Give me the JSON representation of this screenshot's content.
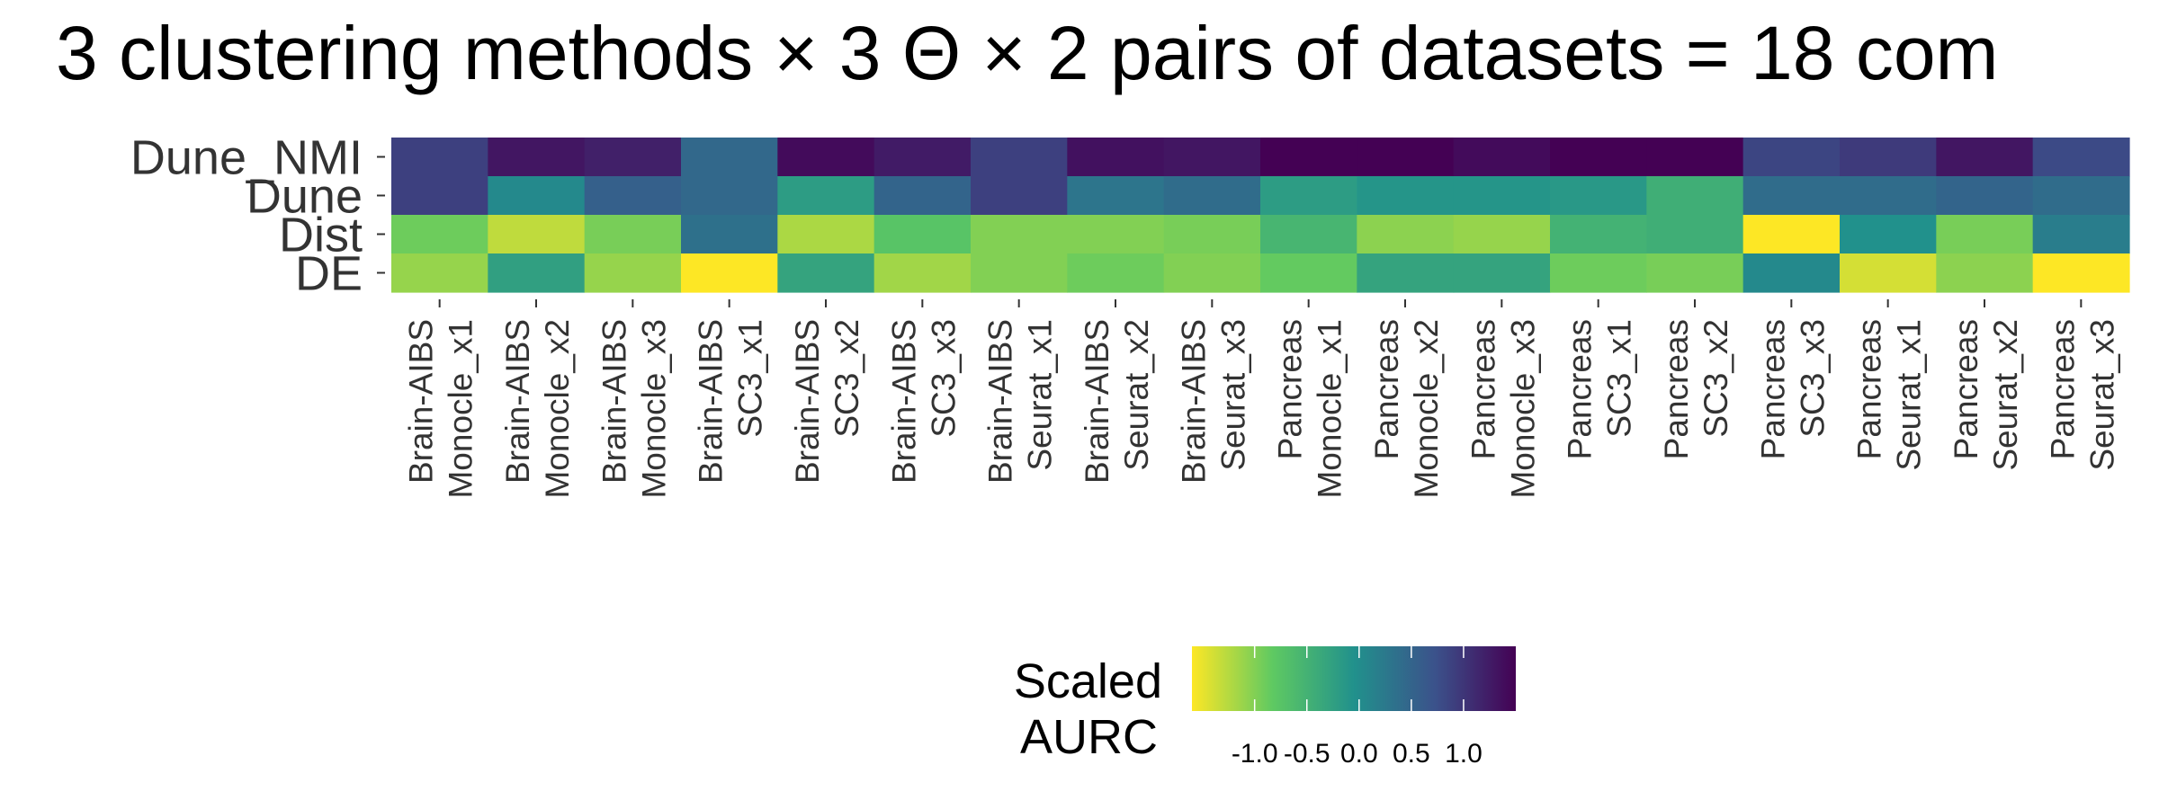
{
  "chart_data": {
    "type": "heatmap",
    "title": "3 clustering methods × 3 Θ  × 2 pairs of datasets = 18 com",
    "rows": [
      "Dune_NMI",
      "Dune",
      "Dist",
      "DE"
    ],
    "columns": [
      [
        "Brain-AIBS",
        "Monocle_x1"
      ],
      [
        "Brain-AIBS",
        "Monocle_x2"
      ],
      [
        "Brain-AIBS",
        "Monocle_x3"
      ],
      [
        "Brain-AIBS",
        "SC3_x1"
      ],
      [
        "Brain-AIBS",
        "SC3_x2"
      ],
      [
        "Brain-AIBS",
        "SC3_x3"
      ],
      [
        "Brain-AIBS",
        "Seurat_x1"
      ],
      [
        "Brain-AIBS",
        "Seurat_x2"
      ],
      [
        "Brain-AIBS",
        "Seurat_x3"
      ],
      [
        "Pancreas",
        "Monocle_x1"
      ],
      [
        "Pancreas",
        "Monocle_x2"
      ],
      [
        "Pancreas",
        "Monocle_x3"
      ],
      [
        "Pancreas",
        "SC3_x1"
      ],
      [
        "Pancreas",
        "SC3_x2"
      ],
      [
        "Pancreas",
        "SC3_x3"
      ],
      [
        "Pancreas",
        "Seurat_x1"
      ],
      [
        "Pancreas",
        "Seurat_x2"
      ],
      [
        "Pancreas",
        "Seurat_x3"
      ]
    ],
    "values": [
      [
        0.9,
        1.3,
        1.2,
        0.45,
        1.4,
        1.25,
        0.9,
        1.35,
        1.3,
        1.5,
        1.5,
        1.4,
        1.5,
        1.5,
        0.85,
        0.95,
        1.3,
        0.8
      ],
      [
        0.9,
        0.05,
        0.55,
        0.45,
        -0.2,
        0.5,
        0.9,
        0.3,
        0.4,
        -0.2,
        -0.1,
        -0.1,
        -0.15,
        -0.45,
        0.4,
        0.4,
        0.5,
        0.4
      ],
      [
        -0.9,
        -1.3,
        -0.95,
        0.35,
        -1.2,
        -0.75,
        -1.0,
        -1.0,
        -0.95,
        -0.55,
        -1.05,
        -1.1,
        -0.5,
        -0.45,
        -1.6,
        -0.05,
        -0.95,
        0.2
      ],
      [
        -1.1,
        -0.25,
        -1.1,
        -1.6,
        -0.3,
        -1.15,
        -1.0,
        -0.9,
        -1.0,
        -0.85,
        -0.3,
        -0.3,
        -0.9,
        -0.95,
        0.05,
        -1.4,
        -1.05,
        -1.6
      ]
    ],
    "color_scale": [
      "#fde725",
      "#5ec962",
      "#21918c",
      "#3b528b",
      "#440154"
    ],
    "value_range": [
      -1.6,
      1.5
    ],
    "legend": {
      "title_line1": "Scaled",
      "title_line2": "AURC",
      "ticks": [
        -1.0,
        -0.5,
        0.0,
        0.5,
        1.0
      ],
      "tick_labels": [
        "-1.0",
        "-0.5",
        "0.0",
        "0.5",
        "1.0"
      ],
      "placement": "bottom"
    }
  }
}
